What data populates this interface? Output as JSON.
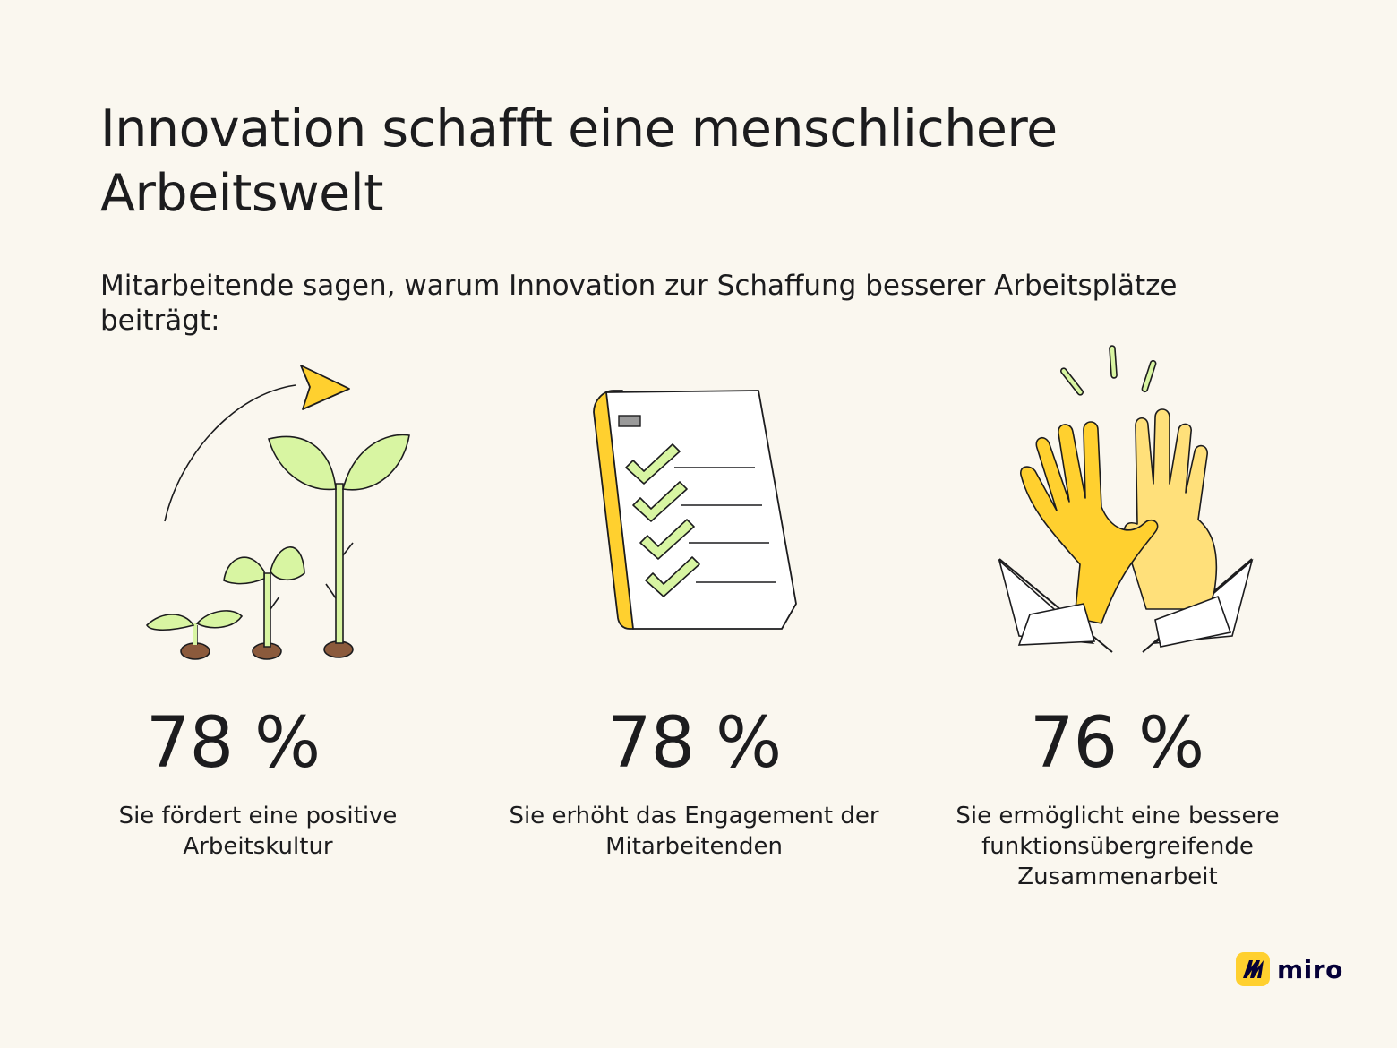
{
  "header": {
    "title": "Innovation schafft eine menschlichere Arbeitswelt",
    "subtitle": "Mitarbeitende sagen, warum Innovation zur Schaffung besserer Arbeitsplätze beiträgt:"
  },
  "stats": [
    {
      "value": "78 %",
      "label": "Sie fördert eine positive Arbeitskultur",
      "icon": "growing-plants-icon"
    },
    {
      "value": "78 %",
      "label": "Sie erhöht das Engagement der Mitarbeitenden",
      "icon": "checklist-icon"
    },
    {
      "value": "76 %",
      "label": "Sie ermöglicht eine bessere funktionsübergreifende Zusammenarbeit",
      "icon": "high-five-icon"
    }
  ],
  "brand": {
    "name": "miro"
  },
  "colors": {
    "background": "#faf7ef",
    "yellow": "#ffd02f",
    "leaf_green": "#d8f5a2",
    "text": "#1c1c1e"
  }
}
